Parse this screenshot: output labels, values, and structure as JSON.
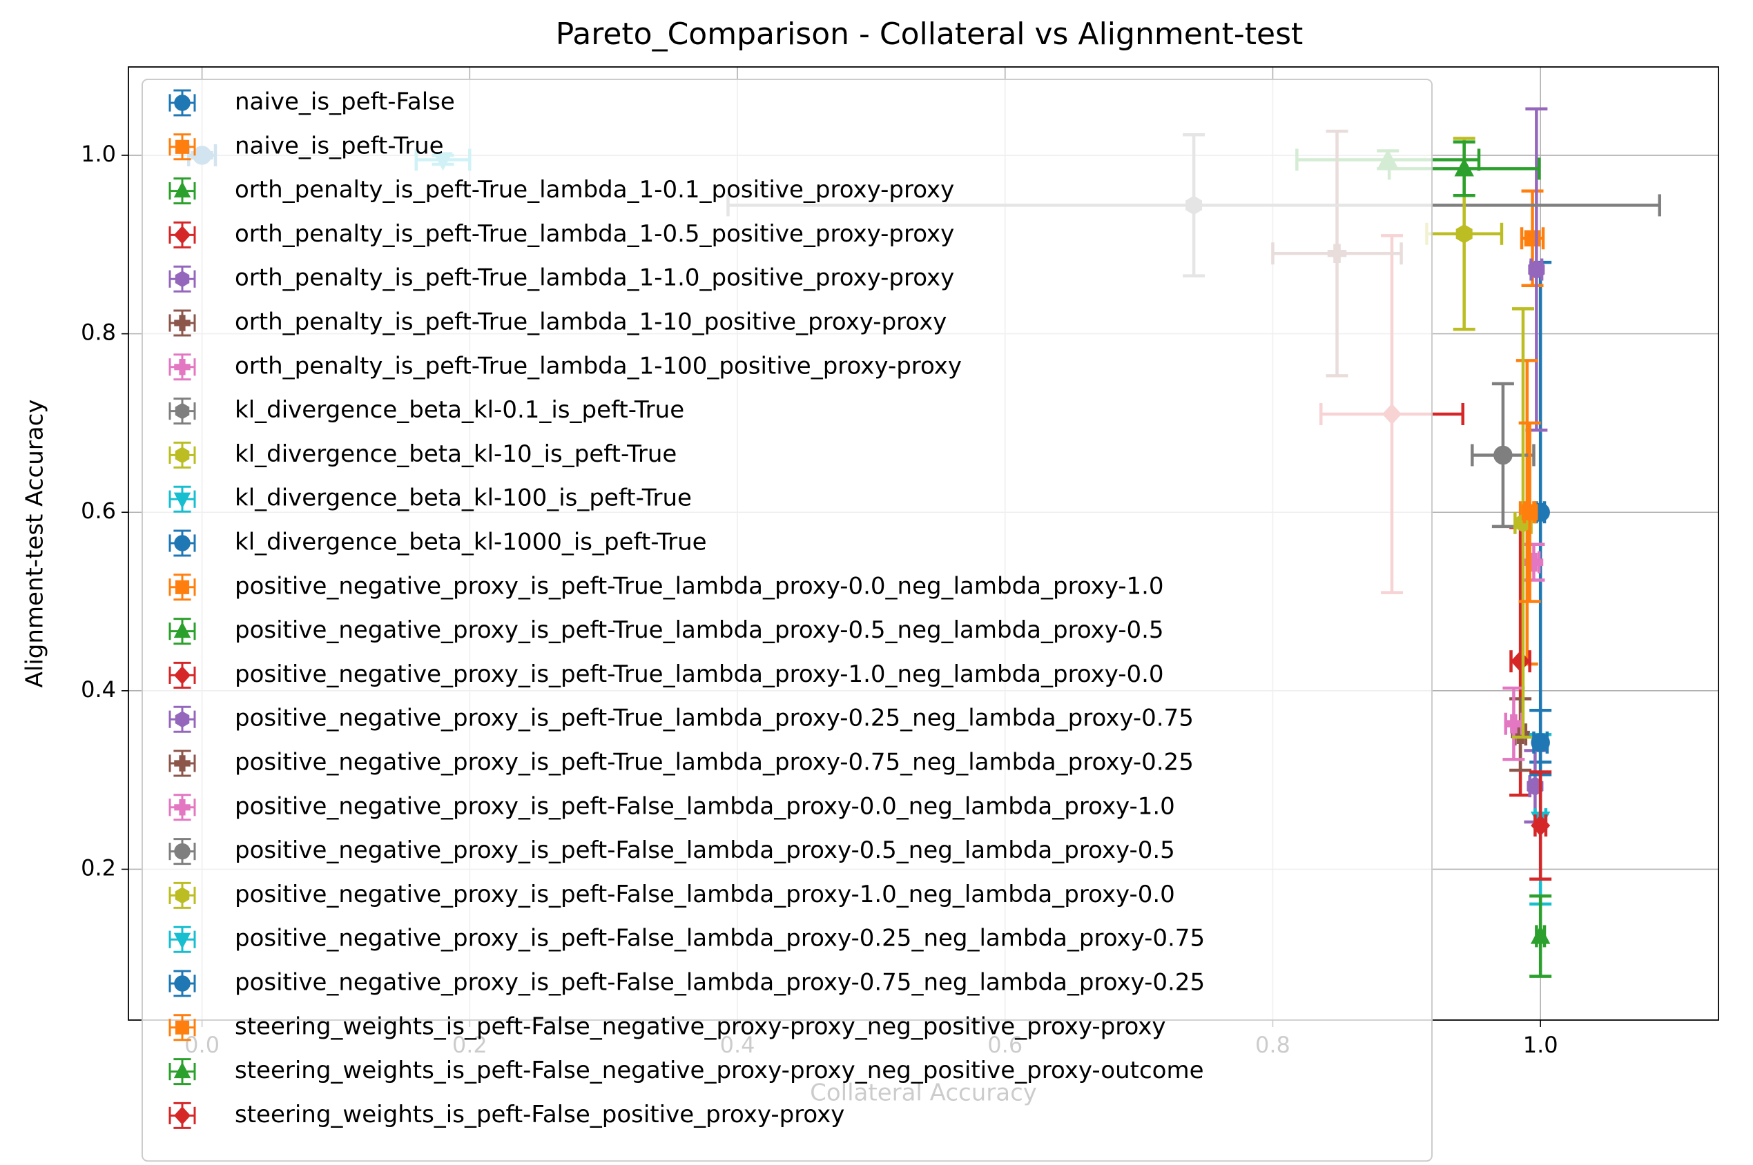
{
  "chart_data": {
    "type": "scatter",
    "title": "Pareto_Comparison - Collateral vs Alignment-test",
    "x_label": "Collateral Accuracy",
    "y_label": "Alignment-test Accuracy",
    "xlim": [
      -0.055,
      1.133
    ],
    "ylim": [
      0.031,
      1.099
    ],
    "xticks": [
      {
        "value": 0,
        "label": "0.0"
      },
      0.2,
      0.4,
      0.6,
      0.8,
      {
        "value": 1,
        "label": "1.0"
      }
    ],
    "yticks": [
      0.2,
      0.4,
      0.6,
      0.8,
      {
        "value": 1,
        "label": "1.0"
      }
    ],
    "grid": true,
    "legend": "upper left",
    "series": [
      {
        "name": "naive_is_peft-False",
        "color": "#1f77b4",
        "marker": "o",
        "x": [
          1.0
        ],
        "values": [
          0.6
        ],
        "xerr": [
          0.003
        ],
        "yerr": [
          0.28
        ]
      },
      {
        "name": "naive_is_peft-True",
        "color": "#ff7f0e",
        "marker": "s",
        "x": [
          0.994
        ],
        "values": [
          0.907
        ],
        "xerr": [
          0.008
        ],
        "yerr": [
          0.053
        ]
      },
      {
        "name": "orth_penalty_is_peft-True_lambda_1-0.1_positive_proxy-proxy",
        "color": "#2ca02c",
        "marker": "^",
        "x": [
          0.886
        ],
        "values": [
          0.995
        ],
        "xerr": [
          0.068
        ],
        "yerr": [
          0.01
        ]
      },
      {
        "name": "orth_penalty_is_peft-True_lambda_1-0.5_positive_proxy-proxy",
        "color": "#d62728",
        "marker": "D",
        "x": [
          0.889
        ],
        "values": [
          0.71
        ],
        "xerr": [
          0.053
        ],
        "yerr": [
          0.2
        ]
      },
      {
        "name": "orth_penalty_is_peft-True_lambda_1-1.0_positive_proxy-proxy",
        "color": "#9467bd",
        "marker": "h",
        "x": [
          0.997
        ],
        "values": [
          0.872
        ],
        "xerr": [
          0.004
        ],
        "yerr": [
          0.18
        ]
      },
      {
        "name": "orth_penalty_is_peft-True_lambda_1-10_positive_proxy-proxy",
        "color": "#8c564b",
        "marker": "P",
        "x": [
          0.848
        ],
        "values": [
          0.89
        ],
        "xerr": [
          0.048
        ],
        "yerr": [
          0.137
        ]
      },
      {
        "name": "orth_penalty_is_peft-True_lambda_1-100_positive_proxy-proxy",
        "color": "#e377c2",
        "marker": "P",
        "x": [
          0.995
        ],
        "values": [
          0.544
        ],
        "xerr": [
          0.004
        ],
        "yerr": [
          0.02
        ]
      },
      {
        "name": "kl_divergence_beta_kl-0.1_is_peft-True",
        "color": "#7f7f7f",
        "marker": "h",
        "x": [
          0.741
        ],
        "values": [
          0.944
        ],
        "xerr": [
          0.348
        ],
        "yerr": [
          0.079
        ]
      },
      {
        "name": "kl_divergence_beta_kl-10_is_peft-True",
        "color": "#bcbd22",
        "marker": "h",
        "x": [
          0.943
        ],
        "values": [
          0.912
        ],
        "xerr": [
          0.028
        ],
        "yerr": [
          0.107
        ]
      },
      {
        "name": "kl_divergence_beta_kl-100_is_peft-True",
        "color": "#17becf",
        "marker": "v",
        "x": [
          0.18
        ],
        "values": [
          0.995
        ],
        "xerr": [
          0.02
        ],
        "yerr": [
          0.005
        ]
      },
      {
        "name": "kl_divergence_beta_kl-1000_is_peft-True",
        "color": "#1f77b4",
        "marker": "o",
        "x": [
          0.0
        ],
        "values": [
          1.0
        ],
        "xerr": [
          0.01
        ],
        "yerr": [
          0.003
        ]
      },
      {
        "name": "positive_negative_proxy_is_peft-True_lambda_proxy-0.0_neg_lambda_proxy-1.0",
        "color": "#ff7f0e",
        "marker": "s",
        "x": [
          0.99
        ],
        "values": [
          0.6
        ],
        "xerr": [
          0.005
        ],
        "yerr": [
          0.17
        ]
      },
      {
        "name": "positive_negative_proxy_is_peft-True_lambda_proxy-0.5_neg_lambda_proxy-0.5",
        "color": "#2ca02c",
        "marker": "^",
        "x": [
          0.943
        ],
        "values": [
          0.985
        ],
        "xerr": [
          0.056
        ],
        "yerr": [
          0.03
        ]
      },
      {
        "name": "positive_negative_proxy_is_peft-True_lambda_proxy-1.0_neg_lambda_proxy-0.0",
        "color": "#d62728",
        "marker": "D",
        "x": [
          0.985
        ],
        "values": [
          0.433
        ],
        "xerr": [
          0.007
        ],
        "yerr": [
          0.15
        ]
      },
      {
        "name": "positive_negative_proxy_is_peft-True_lambda_proxy-0.25_neg_lambda_proxy-0.75",
        "color": "#9467bd",
        "marker": "h",
        "x": [
          0.996
        ],
        "values": [
          0.293
        ],
        "xerr": [
          0.004
        ],
        "yerr": [
          0.04
        ]
      },
      {
        "name": "positive_negative_proxy_is_peft-True_lambda_proxy-0.75_neg_lambda_proxy-0.25",
        "color": "#8c564b",
        "marker": "P",
        "x": [
          0.985
        ],
        "values": [
          0.351
        ],
        "xerr": [
          0.004
        ],
        "yerr": [
          0.04
        ]
      },
      {
        "name": "positive_negative_proxy_is_peft-False_lambda_proxy-0.0_neg_lambda_proxy-1.0",
        "color": "#e377c2",
        "marker": "P",
        "x": [
          0.98
        ],
        "values": [
          0.363
        ],
        "xerr": [
          0.006
        ],
        "yerr": [
          0.04
        ]
      },
      {
        "name": "positive_negative_proxy_is_peft-False_lambda_proxy-0.5_neg_lambda_proxy-0.5",
        "color": "#7f7f7f",
        "marker": "o",
        "x": [
          0.972
        ],
        "values": [
          0.664
        ],
        "xerr": [
          0.023
        ],
        "yerr": [
          0.08
        ]
      },
      {
        "name": "positive_negative_proxy_is_peft-False_lambda_proxy-1.0_neg_lambda_proxy-0.0",
        "color": "#bcbd22",
        "marker": "h",
        "x": [
          0.987
        ],
        "values": [
          0.588
        ],
        "xerr": [
          0.006
        ],
        "yerr": [
          0.24
        ]
      },
      {
        "name": "positive_negative_proxy_is_peft-False_lambda_proxy-0.25_neg_lambda_proxy-0.75",
        "color": "#17becf",
        "marker": "v",
        "x": [
          1.0
        ],
        "values": [
          0.256
        ],
        "xerr": [
          0.004
        ],
        "yerr": [
          0.095
        ]
      },
      {
        "name": "positive_negative_proxy_is_peft-False_lambda_proxy-0.75_neg_lambda_proxy-0.25",
        "color": "#1f77b4",
        "marker": "o",
        "x": [
          1.0
        ],
        "values": [
          0.342
        ],
        "xerr": [
          0.005
        ],
        "yerr": [
          0.036
        ]
      },
      {
        "name": "steering_weights_is_peft-False_negative_proxy-proxy_neg_positive_proxy-proxy",
        "color": "#ff7f0e",
        "marker": "s",
        "x": [
          0.992
        ],
        "values": [
          0.6
        ],
        "xerr": [
          0.004
        ],
        "yerr": [
          0.1
        ]
      },
      {
        "name": "steering_weights_is_peft-False_negative_proxy-proxy_neg_positive_proxy-outcome",
        "color": "#2ca02c",
        "marker": "^",
        "x": [
          1.0
        ],
        "values": [
          0.125
        ],
        "xerr": [
          0.003
        ],
        "yerr": [
          0.045
        ]
      },
      {
        "name": "steering_weights_is_peft-False_positive_proxy-proxy",
        "color": "#d62728",
        "marker": "D",
        "x": [
          1.0
        ],
        "values": [
          0.249
        ],
        "xerr": [
          0.004
        ],
        "yerr": [
          0.06
        ]
      }
    ]
  }
}
